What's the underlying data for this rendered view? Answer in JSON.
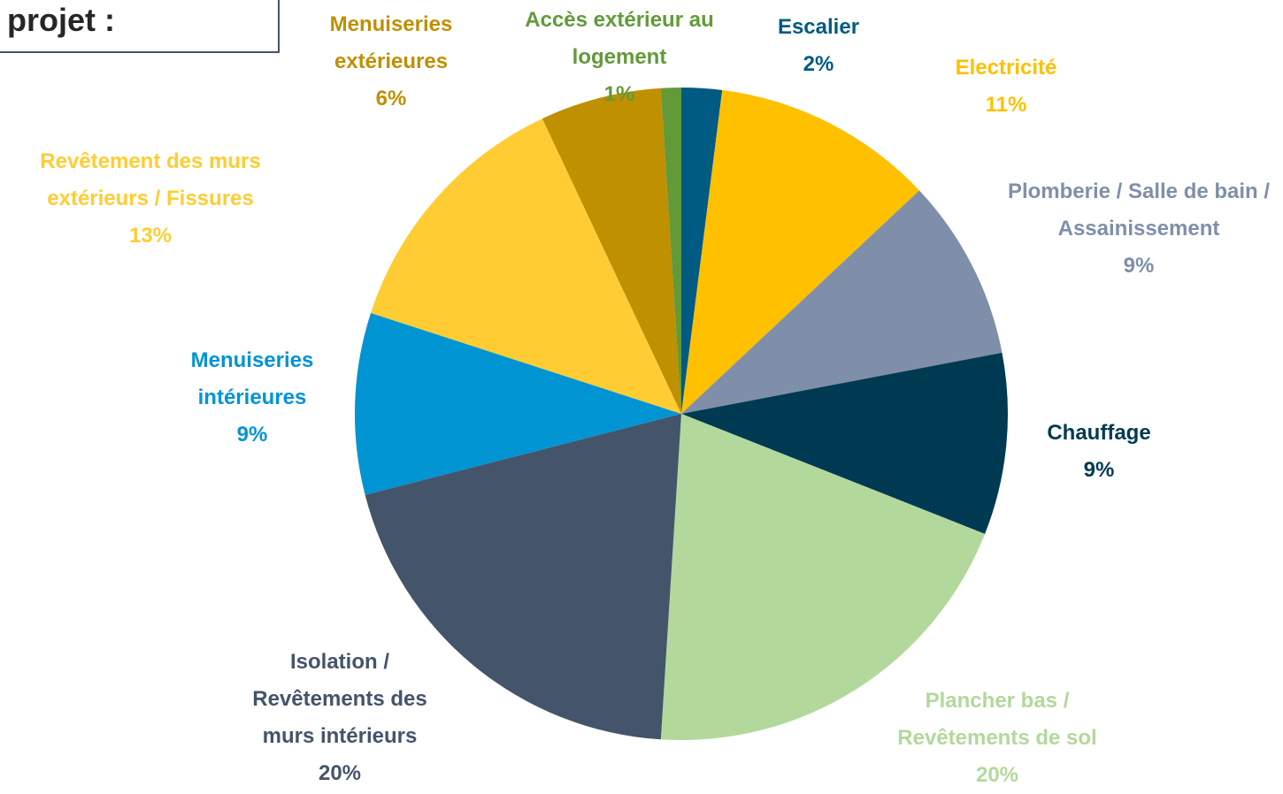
{
  "chart_data": {
    "type": "pie",
    "title": "projet :",
    "categories": [
      "Escalier",
      "Electricité",
      "Plomberie / Salle de bain / Assainissement",
      "Chauffage",
      "Plancher bas / Revêtements de sol",
      "Isolation / Revêtements des murs intérieurs",
      "Menuiseries intérieures",
      "Revêtement des murs extérieurs / Fissures",
      "Menuiseries extérieures",
      "Accès extérieur au logement"
    ],
    "values": [
      2,
      11,
      9,
      9,
      20,
      20,
      9,
      13,
      6,
      1
    ],
    "value_labels": [
      "2%",
      "11%",
      "9%",
      "9%",
      "20%",
      "20%",
      "9%",
      "13%",
      "6%",
      "1%"
    ],
    "colors": [
      "#005b82",
      "#ffc000",
      "#7f8fa9",
      "#003a52",
      "#b3d89c",
      "#44546a",
      "#0094d3",
      "#ffcd33",
      "#bf9000",
      "#629a3a"
    ]
  }
}
